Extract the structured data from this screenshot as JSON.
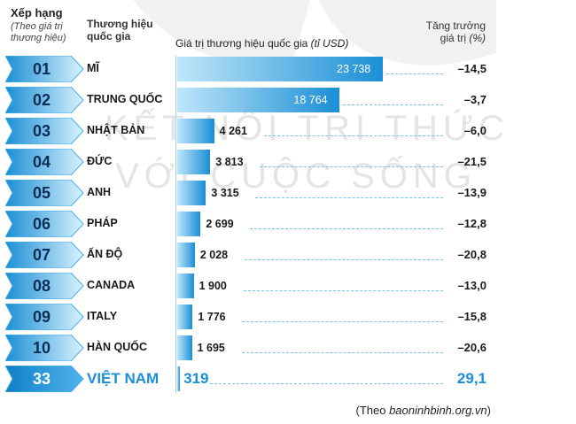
{
  "header": {
    "rank_title": "Xếp hạng",
    "rank_sub": "(Theo giá trị thương hiệu)",
    "brand_title": "Thương hiệu quốc gia",
    "value_title": "Giá trị thương hiệu quốc gia",
    "value_unit": "(tỉ USD)",
    "growth_title": "Tăng trưởng",
    "growth_sub": "giá trị",
    "growth_unit": "(%)"
  },
  "watermark": {
    "line1": "KẾT NỐI TRI THỨC",
    "line2": "VỚI CUỘC SỐNG"
  },
  "source": {
    "prefix": "(Theo ",
    "site": "baoninhbinh.org.vn",
    "suffix": ")"
  },
  "colors": {
    "badge_dark": "#1a8fd6",
    "badge_light": "#cfeefc",
    "bar_dark": "#1a8fd6",
    "bar_light": "#bfe6fa",
    "highlight": "#1a8fd6"
  },
  "chart_data": {
    "type": "bar",
    "orientation": "horizontal",
    "title": "Giá trị thương hiệu quốc gia (tỉ USD)",
    "rows": [
      {
        "rank": "01",
        "country": "MĨ",
        "value": 23738,
        "value_label": "23 738",
        "growth": "–14,5"
      },
      {
        "rank": "02",
        "country": "TRUNG QUỐC",
        "value": 18764,
        "value_label": "18 764",
        "growth": "–3,7"
      },
      {
        "rank": "03",
        "country": "NHẬT BẢN",
        "value": 4261,
        "value_label": "4 261",
        "growth": "–6,0"
      },
      {
        "rank": "04",
        "country": "ĐỨC",
        "value": 3813,
        "value_label": "3 813",
        "growth": "–21,5"
      },
      {
        "rank": "05",
        "country": "ANH",
        "value": 3315,
        "value_label": "3 315",
        "growth": "–13,9"
      },
      {
        "rank": "06",
        "country": "PHÁP",
        "value": 2699,
        "value_label": "2 699",
        "growth": "–12,8"
      },
      {
        "rank": "07",
        "country": "ẤN ĐỘ",
        "value": 2028,
        "value_label": "2 028",
        "growth": "–20,8"
      },
      {
        "rank": "08",
        "country": "CANADA",
        "value": 1900,
        "value_label": "1 900",
        "growth": "–13,0"
      },
      {
        "rank": "09",
        "country": "ITALY",
        "value": 1776,
        "value_label": "1 776",
        "growth": "–15,8"
      },
      {
        "rank": "10",
        "country": "HÀN QUỐC",
        "value": 1695,
        "value_label": "1 695",
        "growth": "–20,6"
      },
      {
        "rank": "33",
        "country": "VIỆT NAM",
        "value": 319,
        "value_label": "319",
        "growth": "29,1",
        "highlight": true
      }
    ]
  }
}
